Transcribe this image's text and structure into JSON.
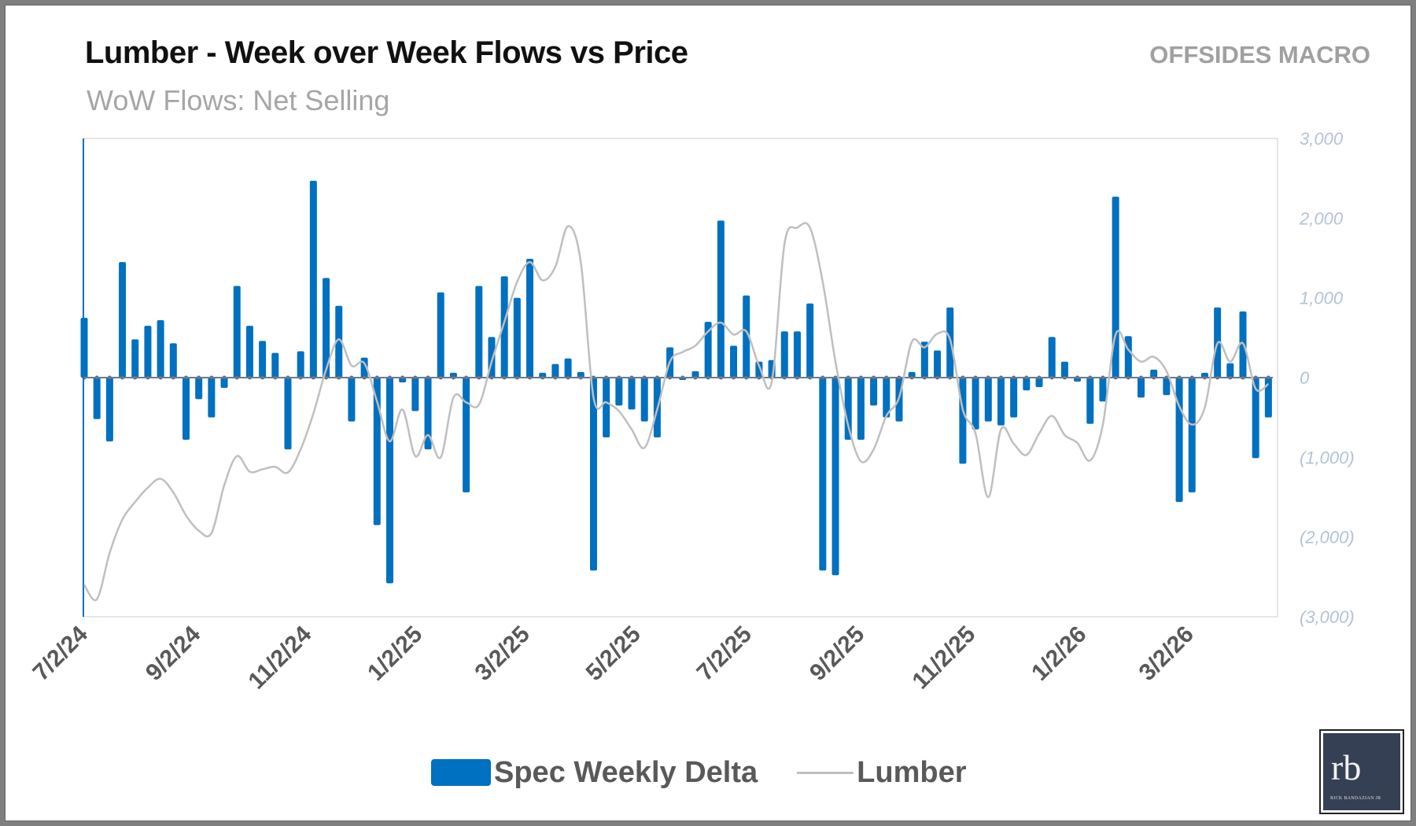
{
  "header": {
    "title": "Lumber - Week over Week Flows vs Price",
    "subtitle": "WoW Flows: Net Selling",
    "brand": "OFFSIDES MACRO"
  },
  "logo": {
    "monogram": "rb",
    "name": "RICK BANDAZIAN JR"
  },
  "colors": {
    "bars": "#0070c0",
    "line": "#bfbfbf",
    "axis": "#0070c0"
  },
  "chart_data": {
    "type": "bar+line",
    "title": "Lumber - Week over Week Flows vs Price",
    "subtitle": "WoW Flows: Net Selling",
    "y_right": {
      "ylim": [
        -3000,
        3000
      ],
      "ticks": [
        "3,000",
        "2,000",
        "1,000",
        "0",
        "(1,000)",
        "(2,000)",
        "(3,000)"
      ],
      "tick_values": [
        3000,
        2000,
        1000,
        0,
        -1000,
        -2000,
        -3000
      ]
    },
    "x_ticks": [
      "7/2/24",
      "9/2/24",
      "11/2/24",
      "1/2/25",
      "3/2/25",
      "5/2/25",
      "7/2/25",
      "9/2/25",
      "11/2/25",
      "1/2/26",
      "3/2/26"
    ],
    "legend": {
      "placement": "bottom",
      "entries": [
        "Spec Weekly Delta",
        "Lumber"
      ]
    },
    "x": [
      "7/2/24",
      "7/9/24",
      "7/16/24",
      "7/23/24",
      "7/30/24",
      "8/6/24",
      "8/13/24",
      "8/20/24",
      "8/27/24",
      "9/3/24",
      "9/10/24",
      "9/17/24",
      "9/24/24",
      "10/1/24",
      "10/8/24",
      "10/15/24",
      "10/22/24",
      "10/29/24",
      "11/5/24",
      "11/12/24",
      "11/19/24",
      "11/26/24",
      "12/3/24",
      "12/10/24",
      "12/17/24",
      "12/24/24",
      "12/31/24",
      "1/7/25",
      "1/14/25",
      "1/21/25",
      "1/28/25",
      "2/4/25",
      "2/11/25",
      "2/18/25",
      "2/25/25",
      "3/4/25",
      "3/11/25",
      "3/18/25",
      "3/25/25",
      "4/1/25",
      "4/8/25",
      "4/15/25",
      "4/22/25",
      "4/29/25",
      "5/6/25",
      "5/13/25",
      "5/20/25",
      "5/27/25",
      "6/3/25",
      "6/10/25",
      "6/17/25",
      "6/24/25",
      "7/1/25",
      "7/8/25",
      "7/15/25",
      "7/22/25",
      "7/29/25",
      "8/5/25",
      "8/12/25",
      "8/19/25",
      "8/26/25",
      "9/2/25",
      "9/9/25",
      "9/16/25",
      "9/23/25",
      "9/30/25",
      "10/7/25",
      "10/14/25",
      "10/21/25",
      "10/28/25",
      "11/4/25",
      "11/11/25",
      "11/18/25",
      "11/25/25",
      "12/2/25",
      "12/9/25",
      "12/16/25",
      "12/23/25",
      "12/30/25",
      "1/6/26",
      "1/13/26",
      "1/20/26",
      "1/27/26",
      "2/3/26",
      "2/10/26",
      "2/17/26",
      "2/24/26",
      "3/3/26",
      "3/10/26",
      "3/17/26",
      "3/24/26",
      "3/31/26",
      "4/7/26",
      "4/14/26"
    ],
    "series": [
      {
        "name": "Spec Weekly Delta",
        "type": "bar",
        "values": [
          750,
          -520,
          -800,
          1450,
          480,
          650,
          720,
          430,
          -780,
          -270,
          -500,
          -130,
          1150,
          650,
          460,
          310,
          -900,
          330,
          2470,
          1250,
          900,
          -550,
          250,
          -1850,
          -2580,
          -60,
          -420,
          -900,
          1070,
          60,
          -1440,
          1150,
          510,
          1270,
          1000,
          1490,
          60,
          170,
          240,
          70,
          -2420,
          -750,
          -350,
          -400,
          -550,
          -750,
          380,
          -30,
          80,
          700,
          1970,
          400,
          1030,
          200,
          220,
          580,
          580,
          930,
          -2420,
          -2480,
          -780,
          -780,
          -350,
          -500,
          -550,
          70,
          450,
          340,
          880,
          -1080,
          -650,
          -550,
          -600,
          -500,
          -160,
          -120,
          510,
          200,
          -50,
          -580,
          -300,
          2270,
          520,
          -250,
          100,
          -220,
          -1560,
          -1440,
          60,
          880,
          180,
          830,
          -1010,
          -500
        ]
      },
      {
        "name": "Lumber",
        "type": "line",
        "values": [
          -2600,
          -2780,
          -2200,
          -1780,
          -1560,
          -1380,
          -1270,
          -1440,
          -1730,
          -1920,
          -1950,
          -1350,
          -985,
          -1180,
          -1150,
          -1120,
          -1190,
          -900,
          -450,
          100,
          480,
          150,
          180,
          -300,
          -800,
          -400,
          -985,
          -720,
          -1000,
          -250,
          -310,
          -340,
          200,
          700,
          1200,
          1450,
          1220,
          1390,
          1900,
          1450,
          -250,
          -310,
          -420,
          -650,
          -880,
          -400,
          200,
          320,
          400,
          580,
          690,
          540,
          580,
          150,
          -50,
          1680,
          1880,
          1880,
          1200,
          200,
          -600,
          -1050,
          -900,
          -480,
          -250,
          450,
          380,
          550,
          480,
          -400,
          -700,
          -1500,
          -650,
          -830,
          -970,
          -700,
          -480,
          -720,
          -820,
          -1040,
          -590,
          540,
          350,
          200,
          260,
          80,
          -360,
          -590,
          -380,
          430,
          200,
          430,
          -140,
          -80
        ]
      }
    ]
  }
}
